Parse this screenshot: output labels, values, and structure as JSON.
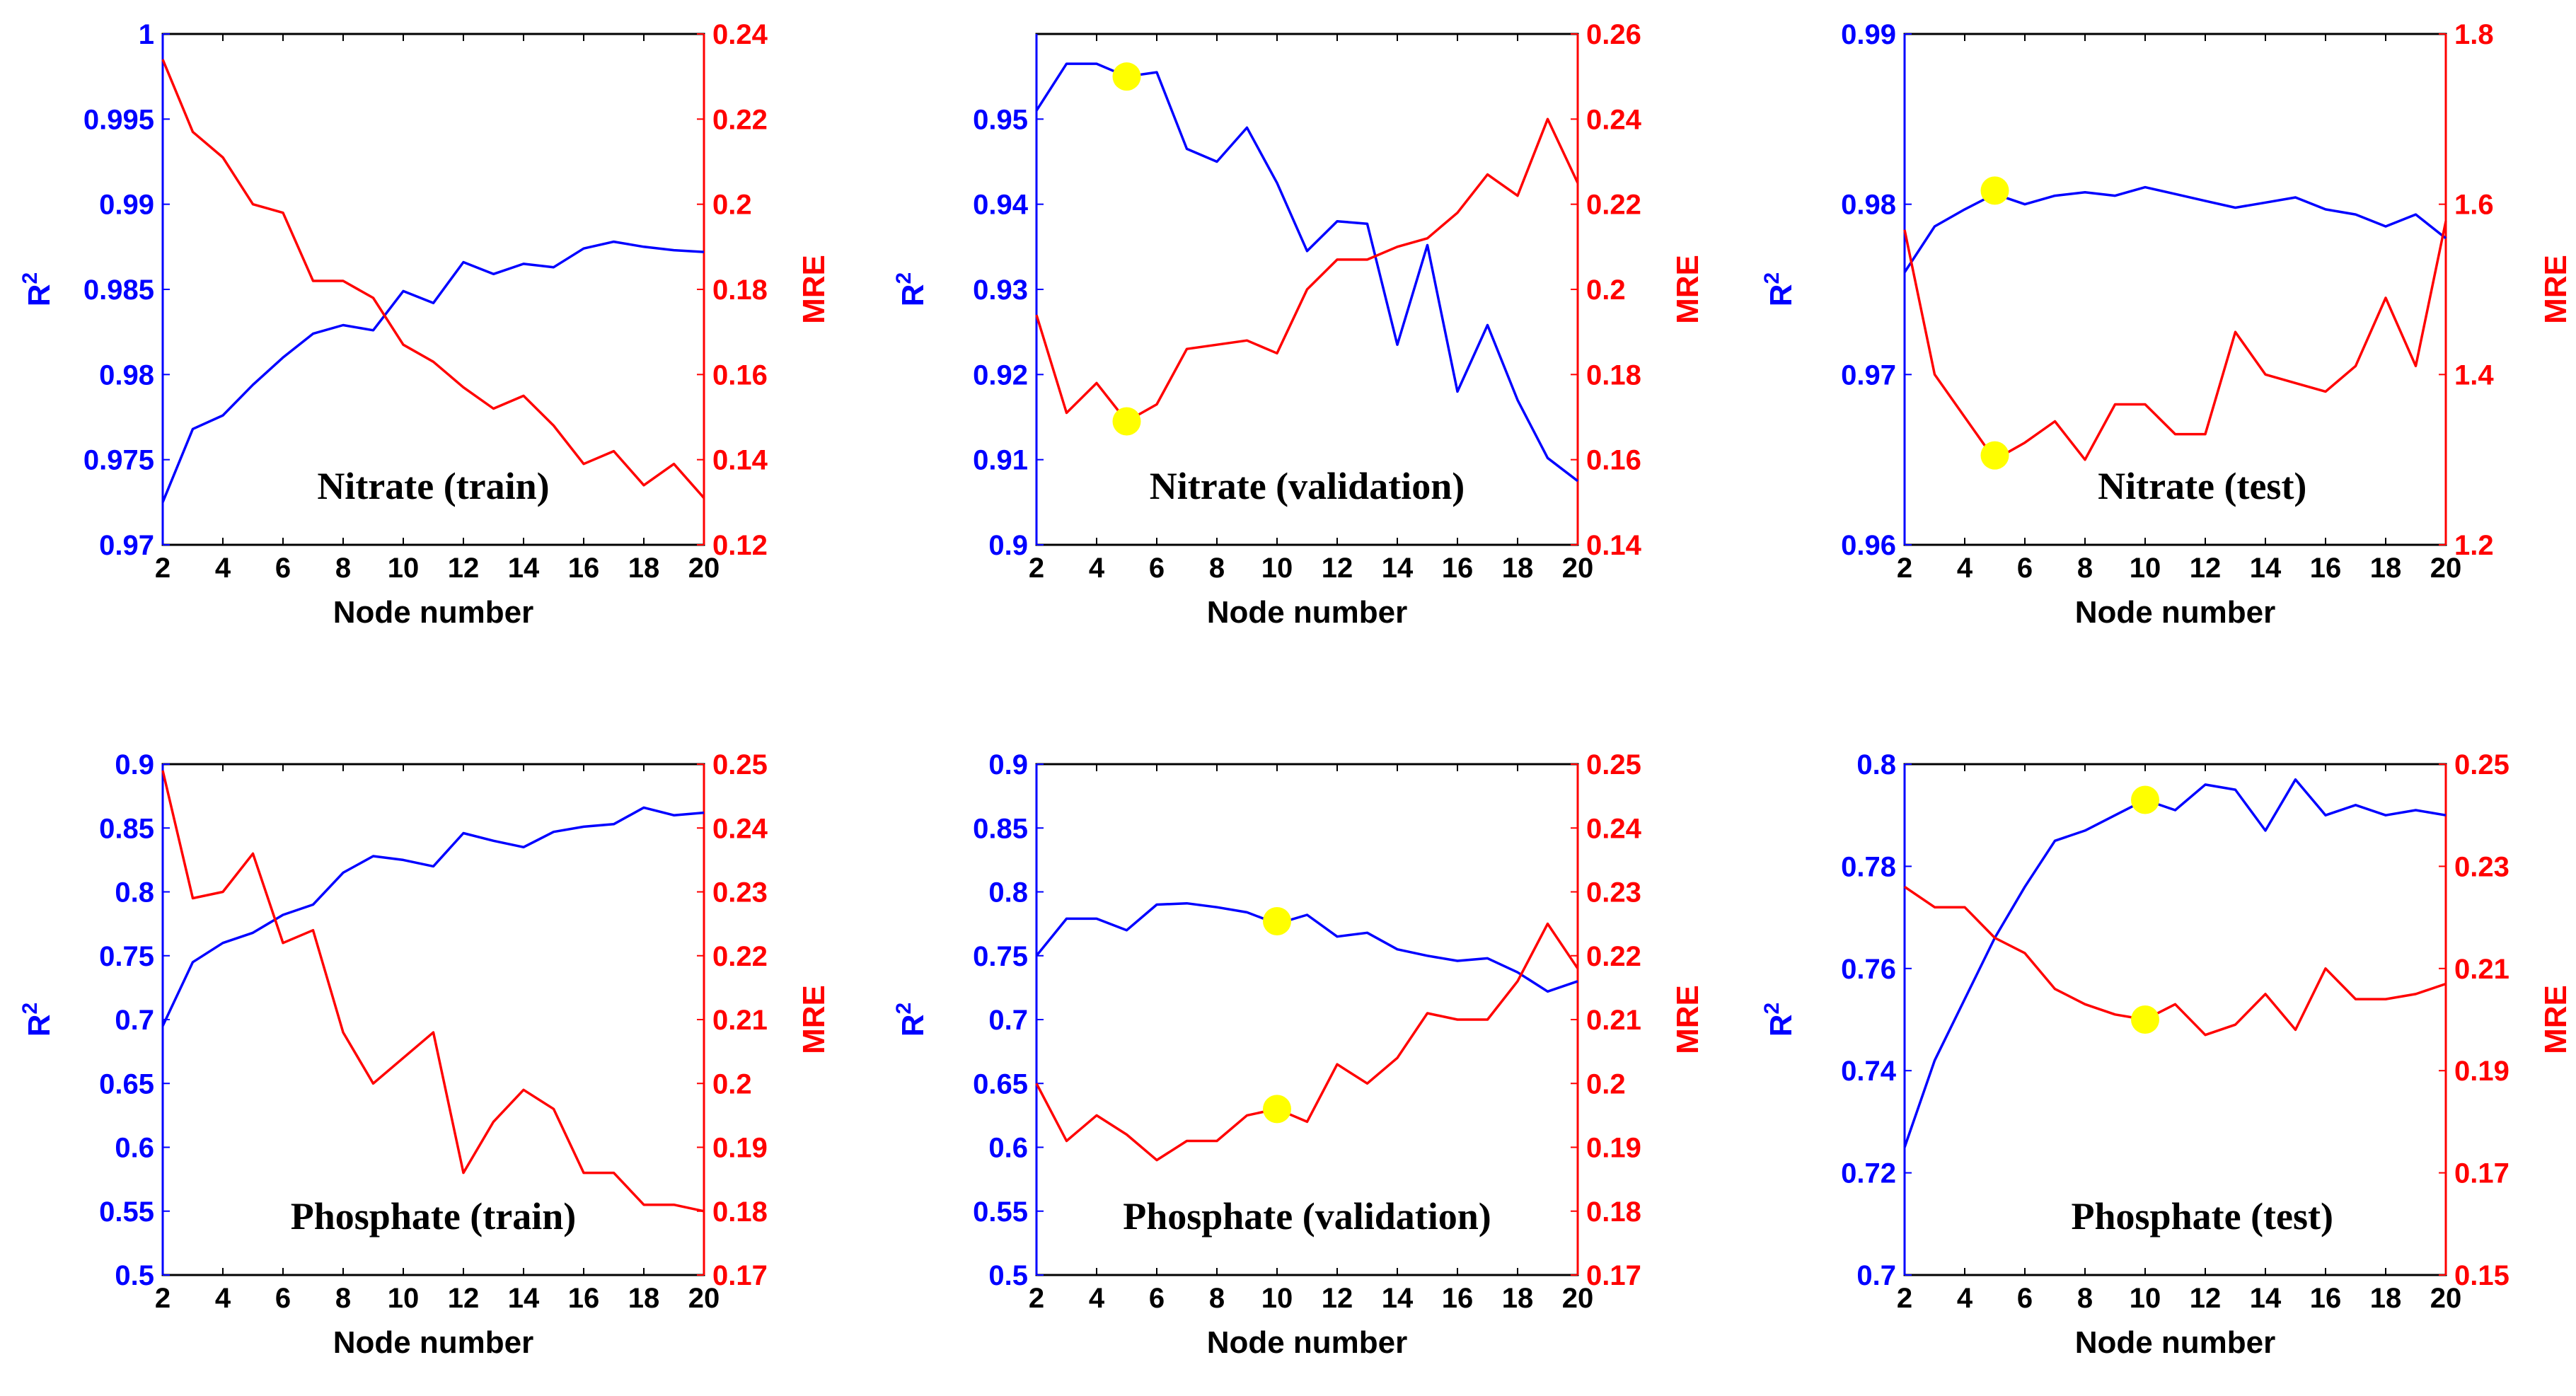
{
  "figure": {
    "colors": {
      "left_axis": "#0000ff",
      "right_axis": "#ff0000",
      "highlight": "#ffff00",
      "frame": "#000000"
    }
  },
  "chart_data": [
    {
      "type": "line",
      "title": "Nitrate (train)",
      "xlabel": "Node number",
      "ylabel_left": "R2",
      "ylabel_right": "MRE",
      "xlim": [
        2,
        20
      ],
      "xticks": [
        2,
        4,
        6,
        8,
        10,
        12,
        14,
        16,
        18,
        20
      ],
      "ylim_left": [
        0.97,
        1
      ],
      "yticks_left": [
        "0.97",
        "0.975",
        "0.98",
        "0.985",
        "0.99",
        "0.995",
        "1"
      ],
      "ylim_right": [
        0.12,
        0.24
      ],
      "yticks_right": [
        "0.12",
        "0.14",
        "0.16",
        "0.18",
        "0.2",
        "0.22",
        "0.24"
      ],
      "x": [
        2,
        3,
        4,
        5,
        6,
        7,
        8,
        9,
        10,
        11,
        12,
        13,
        14,
        15,
        16,
        17,
        18,
        19,
        20
      ],
      "series": [
        {
          "name": "R2",
          "axis": "left",
          "color": "#0000ff",
          "values": [
            0.9725,
            0.9768,
            0.9776,
            0.9794,
            0.981,
            0.9824,
            0.9829,
            0.9826,
            0.9849,
            0.9842,
            0.9866,
            0.9859,
            0.9865,
            0.9863,
            0.9874,
            0.9878,
            0.9875,
            0.9873,
            0.9872
          ]
        },
        {
          "name": "MRE",
          "axis": "right",
          "color": "#ff0000",
          "values": [
            0.234,
            0.217,
            0.211,
            0.2,
            0.198,
            0.182,
            0.182,
            0.178,
            0.167,
            0.163,
            0.157,
            0.152,
            0.155,
            0.148,
            0.139,
            0.142,
            0.134,
            0.139,
            0.131
          ]
        }
      ],
      "highlights": []
    },
    {
      "type": "line",
      "title": "Nitrate (validation)",
      "xlabel": "Node number",
      "ylabel_left": "R2",
      "ylabel_right": "MRE",
      "xlim": [
        2,
        20
      ],
      "xticks": [
        2,
        4,
        6,
        8,
        10,
        12,
        14,
        16,
        18,
        20
      ],
      "ylim_left": [
        0.9,
        0.96
      ],
      "yticks_left": [
        "0.9",
        "0.91",
        "0.92",
        "0.93",
        "0.94",
        "0.95"
      ],
      "ylim_right": [
        0.14,
        0.26
      ],
      "yticks_right": [
        "0.14",
        "0.16",
        "0.18",
        "0.2",
        "0.22",
        "0.24",
        "0.26"
      ],
      "x": [
        2,
        3,
        4,
        5,
        6,
        7,
        8,
        9,
        10,
        11,
        12,
        13,
        14,
        15,
        16,
        17,
        18,
        19,
        20
      ],
      "series": [
        {
          "name": "R2",
          "axis": "left",
          "color": "#0000ff",
          "values": [
            0.951,
            0.9565,
            0.9565,
            0.955,
            0.9555,
            0.9465,
            0.945,
            0.949,
            0.9425,
            0.9345,
            0.938,
            0.9377,
            0.9235,
            0.9352,
            0.918,
            0.9258,
            0.917,
            0.9102,
            0.9075
          ]
        },
        {
          "name": "MRE",
          "axis": "right",
          "color": "#ff0000",
          "values": [
            0.194,
            0.171,
            0.178,
            0.169,
            0.173,
            0.186,
            0.187,
            0.188,
            0.185,
            0.2,
            0.207,
            0.207,
            0.21,
            0.212,
            0.218,
            0.227,
            0.222,
            0.24,
            0.225
          ]
        }
      ],
      "highlights": [
        {
          "axis": "left",
          "x": 5,
          "y": 0.955
        },
        {
          "axis": "right",
          "x": 5,
          "y": 0.169
        }
      ]
    },
    {
      "type": "line",
      "title": "Nitrate (test)",
      "xlabel": "Node number",
      "ylabel_left": "R2",
      "ylabel_right": "MRE",
      "xlim": [
        2,
        20
      ],
      "xticks": [
        2,
        4,
        6,
        8,
        10,
        12,
        14,
        16,
        18,
        20
      ],
      "ylim_left": [
        0.96,
        0.99
      ],
      "yticks_left": [
        "0.96",
        "0.97",
        "0.98",
        "0.99"
      ],
      "ylim_right": [
        1.2,
        1.8
      ],
      "yticks_right": [
        "1.2",
        "1.4",
        "1.6",
        "1.8"
      ],
      "x": [
        2,
        3,
        4,
        5,
        6,
        7,
        8,
        9,
        10,
        11,
        12,
        13,
        14,
        15,
        16,
        17,
        18,
        19,
        20
      ],
      "series": [
        {
          "name": "R2",
          "axis": "left",
          "color": "#0000ff",
          "values": [
            0.976,
            0.9787,
            0.9797,
            0.9806,
            0.98,
            0.9805,
            0.9807,
            0.9805,
            0.981,
            0.9806,
            0.9802,
            0.9798,
            0.9801,
            0.9804,
            0.9797,
            0.9794,
            0.9787,
            0.9794,
            0.978
          ]
        },
        {
          "name": "MRE",
          "axis": "right",
          "color": "#ff0000",
          "values": [
            1.57,
            1.4,
            1.35,
            1.3,
            1.32,
            1.345,
            1.3,
            1.365,
            1.365,
            1.33,
            1.33,
            1.45,
            1.4,
            1.39,
            1.38,
            1.41,
            1.49,
            1.41,
            1.58
          ]
        }
      ],
      "highlights": [
        {
          "axis": "left",
          "x": 5,
          "y": 0.9808
        },
        {
          "axis": "right",
          "x": 5,
          "y": 1.305
        }
      ]
    },
    {
      "type": "line",
      "title": "Phosphate (train)",
      "xlabel": "Node number",
      "ylabel_left": "R2",
      "ylabel_right": "MRE",
      "xlim": [
        2,
        20
      ],
      "xticks": [
        2,
        4,
        6,
        8,
        10,
        12,
        14,
        16,
        18,
        20
      ],
      "ylim_left": [
        0.5,
        0.9
      ],
      "yticks_left": [
        "0.5",
        "0.55",
        "0.6",
        "0.65",
        "0.7",
        "0.75",
        "0.8",
        "0.85",
        "0.9"
      ],
      "ylim_right": [
        0.17,
        0.25
      ],
      "yticks_right": [
        "0.17",
        "0.18",
        "0.19",
        "0.2",
        "0.21",
        "0.22",
        "0.23",
        "0.24",
        "0.25"
      ],
      "x": [
        2,
        3,
        4,
        5,
        6,
        7,
        8,
        9,
        10,
        11,
        12,
        13,
        14,
        15,
        16,
        17,
        18,
        19,
        20
      ],
      "series": [
        {
          "name": "R2",
          "axis": "left",
          "color": "#0000ff",
          "values": [
            0.695,
            0.745,
            0.76,
            0.768,
            0.782,
            0.79,
            0.815,
            0.828,
            0.825,
            0.82,
            0.846,
            0.84,
            0.835,
            0.847,
            0.851,
            0.853,
            0.866,
            0.86,
            0.862
          ]
        },
        {
          "name": "MRE",
          "axis": "right",
          "color": "#ff0000",
          "values": [
            0.249,
            0.229,
            0.23,
            0.236,
            0.222,
            0.224,
            0.208,
            0.2,
            0.204,
            0.208,
            0.186,
            0.194,
            0.199,
            0.196,
            0.186,
            0.186,
            0.181,
            0.181,
            0.18
          ]
        }
      ],
      "highlights": []
    },
    {
      "type": "line",
      "title": "Phosphate (validation)",
      "xlabel": "Node number",
      "ylabel_left": "R2",
      "ylabel_right": "MRE",
      "xlim": [
        2,
        20
      ],
      "xticks": [
        2,
        4,
        6,
        8,
        10,
        12,
        14,
        16,
        18,
        20
      ],
      "ylim_left": [
        0.5,
        0.9
      ],
      "yticks_left": [
        "0.5",
        "0.55",
        "0.6",
        "0.65",
        "0.7",
        "0.75",
        "0.8",
        "0.85",
        "0.9"
      ],
      "ylim_right": [
        0.17,
        0.25
      ],
      "yticks_right": [
        "0.17",
        "0.18",
        "0.19",
        "0.2",
        "0.21",
        "0.22",
        "0.23",
        "0.24",
        "0.25"
      ],
      "x": [
        2,
        3,
        4,
        5,
        6,
        7,
        8,
        9,
        10,
        11,
        12,
        13,
        14,
        15,
        16,
        17,
        18,
        19,
        20
      ],
      "series": [
        {
          "name": "R2",
          "axis": "left",
          "color": "#0000ff",
          "values": [
            0.75,
            0.779,
            0.779,
            0.77,
            0.79,
            0.791,
            0.788,
            0.784,
            0.775,
            0.782,
            0.765,
            0.768,
            0.755,
            0.75,
            0.746,
            0.748,
            0.737,
            0.722,
            0.73
          ]
        },
        {
          "name": "MRE",
          "axis": "right",
          "color": "#ff0000",
          "values": [
            0.2,
            0.191,
            0.195,
            0.192,
            0.188,
            0.191,
            0.191,
            0.195,
            0.196,
            0.194,
            0.203,
            0.2,
            0.204,
            0.211,
            0.21,
            0.21,
            0.216,
            0.225,
            0.218
          ]
        }
      ],
      "highlights": [
        {
          "axis": "left",
          "x": 10,
          "y": 0.777
        },
        {
          "axis": "right",
          "x": 10,
          "y": 0.196
        }
      ]
    },
    {
      "type": "line",
      "title": "Phosphate (test)",
      "xlabel": "Node number",
      "ylabel_left": "R2",
      "ylabel_right": "MRE",
      "xlim": [
        2,
        20
      ],
      "xticks": [
        2,
        4,
        6,
        8,
        10,
        12,
        14,
        16,
        18,
        20
      ],
      "ylim_left": [
        0.7,
        0.8
      ],
      "yticks_left": [
        "0.7",
        "0.72",
        "0.74",
        "0.76",
        "0.78",
        "0.8"
      ],
      "ylim_right": [
        0.15,
        0.25
      ],
      "yticks_right": [
        "0.15",
        "0.17",
        "0.19",
        "0.21",
        "0.23",
        "0.25"
      ],
      "x": [
        2,
        3,
        4,
        5,
        6,
        7,
        8,
        9,
        10,
        11,
        12,
        13,
        14,
        15,
        16,
        17,
        18,
        19,
        20
      ],
      "series": [
        {
          "name": "R2",
          "axis": "left",
          "color": "#0000ff",
          "values": [
            0.725,
            0.742,
            0.754,
            0.766,
            0.776,
            0.785,
            0.787,
            0.79,
            0.793,
            0.791,
            0.796,
            0.795,
            0.787,
            0.797,
            0.79,
            0.792,
            0.79,
            0.791,
            0.79
          ]
        },
        {
          "name": "MRE",
          "axis": "right",
          "color": "#ff0000",
          "values": [
            0.226,
            0.222,
            0.222,
            0.216,
            0.213,
            0.206,
            0.203,
            0.201,
            0.2,
            0.203,
            0.197,
            0.199,
            0.205,
            0.198,
            0.21,
            0.204,
            0.204,
            0.205,
            0.207
          ]
        }
      ],
      "highlights": [
        {
          "axis": "left",
          "x": 10,
          "y": 0.793
        },
        {
          "axis": "right",
          "x": 10,
          "y": 0.2
        }
      ]
    }
  ]
}
